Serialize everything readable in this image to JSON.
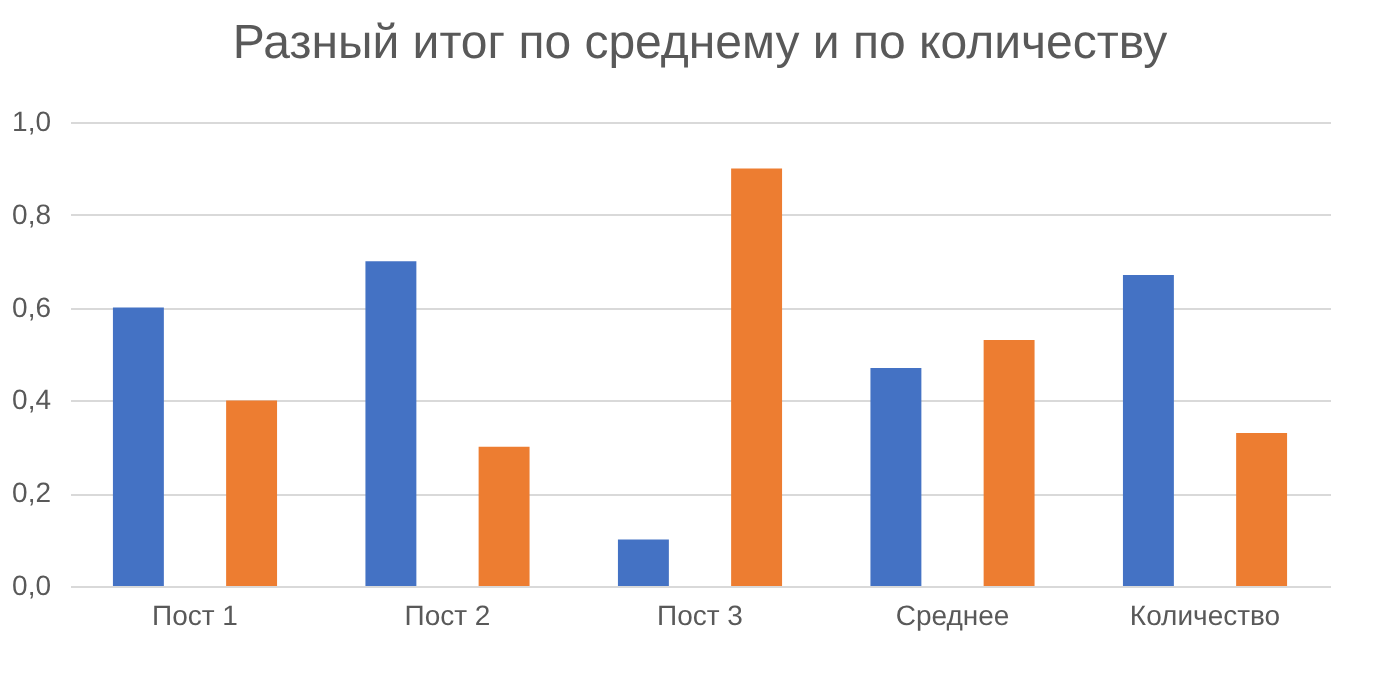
{
  "chart_data": {
    "type": "bar",
    "title": "Разный итог по среднему и по количеству",
    "categories": [
      "Пост 1",
      "Пост 2",
      "Пост 3",
      "Среднее",
      "Количество"
    ],
    "series": [
      {
        "color": "#4472c4",
        "values": [
          0.6,
          0.7,
          0.1,
          0.47,
          0.67
        ]
      },
      {
        "color": "#ed7d31",
        "values": [
          0.4,
          0.3,
          0.9,
          0.53,
          0.33
        ]
      }
    ],
    "ylim": [
      0,
      1
    ],
    "yticks": [
      {
        "value": 0,
        "label": "0,0"
      },
      {
        "value": 0.2,
        "label": "0,2"
      },
      {
        "value": 0.4,
        "label": "0,4"
      },
      {
        "value": 0.6,
        "label": "0,6"
      },
      {
        "value": 0.8,
        "label": "0,8"
      },
      {
        "value": 1,
        "label": "1,0"
      }
    ],
    "grid": "y",
    "legend": false
  }
}
